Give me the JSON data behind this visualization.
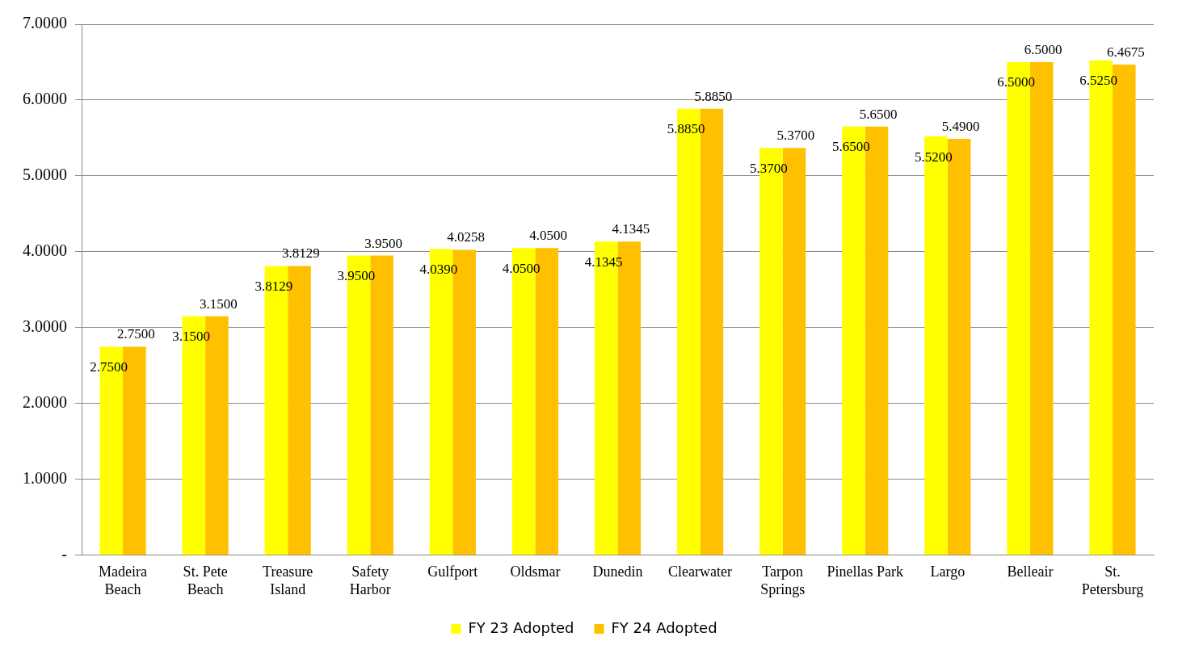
{
  "chart_data": {
    "type": "bar",
    "categories": [
      "Madeira Beach",
      "St. Pete Beach",
      "Treasure Island",
      "Safety Harbor",
      "Gulfport",
      "Oldsmar",
      "Dunedin",
      "Clearwater",
      "Tarpon Springs",
      "Pinellas Park",
      "Largo",
      "Belleair",
      "St. Petersburg"
    ],
    "series": [
      {
        "name": "FY 23 Adopted",
        "color": "#ffff00",
        "values": [
          2.75,
          3.15,
          3.8129,
          3.95,
          4.039,
          4.05,
          4.1345,
          5.885,
          5.37,
          5.65,
          5.52,
          6.5,
          6.525
        ],
        "value_labels": [
          "2.7500",
          "3.1500",
          "3.8129",
          "3.9500",
          "4.0390",
          "4.0500",
          "4.1345",
          "5.8850",
          "5.3700",
          "5.6500",
          "5.5200",
          "6.5000",
          "6.5250"
        ]
      },
      {
        "name": "FY 24 Adopted",
        "color": "#ffc000",
        "values": [
          2.75,
          3.15,
          3.8129,
          3.95,
          4.0258,
          4.05,
          4.1345,
          5.885,
          5.37,
          5.65,
          5.49,
          6.5,
          6.4675
        ],
        "value_labels": [
          "2.7500",
          "3.1500",
          "3.8129",
          "3.9500",
          "4.0258",
          "4.0500",
          "4.1345",
          "5.8850",
          "5.3700",
          "5.6500",
          "5.4900",
          "6.5000",
          "6.4675"
        ]
      }
    ],
    "ylim": [
      0,
      7
    ],
    "yticks": [
      {
        "value": 0,
        "label": "-"
      },
      {
        "value": 1,
        "label": "1.0000"
      },
      {
        "value": 2,
        "label": "2.0000"
      },
      {
        "value": 3,
        "label": "3.0000"
      },
      {
        "value": 4,
        "label": "4.0000"
      },
      {
        "value": 5,
        "label": "5.0000"
      },
      {
        "value": 6,
        "label": "6.0000"
      },
      {
        "value": 7,
        "label": "7.0000"
      }
    ],
    "grid": "y",
    "legend": "bottom"
  }
}
